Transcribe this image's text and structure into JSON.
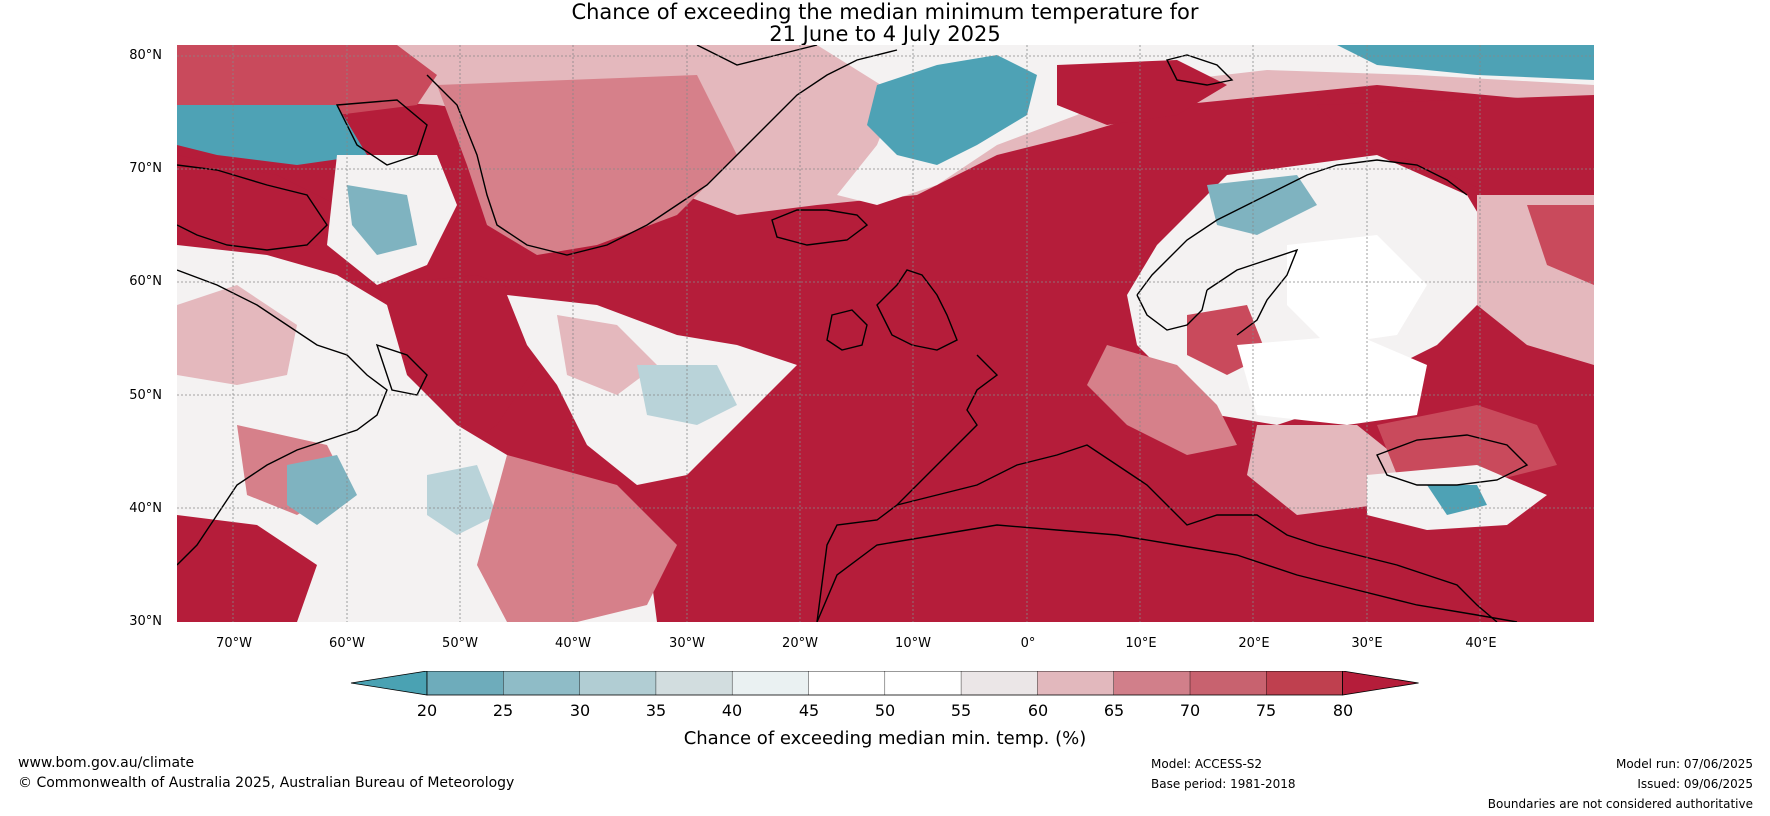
{
  "title": {
    "line1": "Chance of exceeding the median minimum temperature for",
    "line2": "21 June to 4 July 2025"
  },
  "map": {
    "lat_labels": [
      "80°N",
      "70°N",
      "60°N",
      "50°N",
      "40°N",
      "30°N"
    ],
    "lon_labels": [
      "70°W",
      "60°W",
      "50°W",
      "40°W",
      "30°W",
      "20°W",
      "10°W",
      "0°",
      "10°E",
      "20°E",
      "30°E",
      "40°E"
    ],
    "extent": {
      "lon": [
        -75,
        50
      ],
      "lat": [
        30,
        81
      ]
    },
    "palette": {
      "deep_red": "#b51d3a",
      "red": "#c94a5c",
      "pink": "#d6808a",
      "light_pink": "#e4b8bd",
      "near_white": "#f4f2f2",
      "white": "#ffffff",
      "pale_blue": "#e3eef0",
      "light_blue": "#b9d3d9",
      "blue": "#7fb3c0",
      "deep_blue": "#4ea2b5"
    }
  },
  "colorbar": {
    "ticks": [
      "20",
      "25",
      "30",
      "35",
      "40",
      "45",
      "50",
      "55",
      "60",
      "65",
      "70",
      "75",
      "80"
    ],
    "colors": [
      "#4aa2b3",
      "#6eacbb",
      "#8fbcc7",
      "#b1cdd3",
      "#d2dddf",
      "#eaf1f2",
      "#ffffff",
      "#ffffff",
      "#ebe6e7",
      "#e2b8bd",
      "#d17f8a",
      "#c8626f",
      "#bf404f",
      "#b51d3a"
    ],
    "label": "Chance of exceeding median min. temp. (%)"
  },
  "footer": {
    "website": "www.bom.gov.au/climate",
    "copyright": "© Commonwealth of Australia 2025, Australian Bureau of Meteorology",
    "model": "Model: ACCESS-S2",
    "base_period": "Base period: 1981-2018",
    "model_run": "Model run: 07/06/2025",
    "issued": "Issued: 09/06/2025",
    "boundaries": "Boundaries are not considered authoritative"
  }
}
